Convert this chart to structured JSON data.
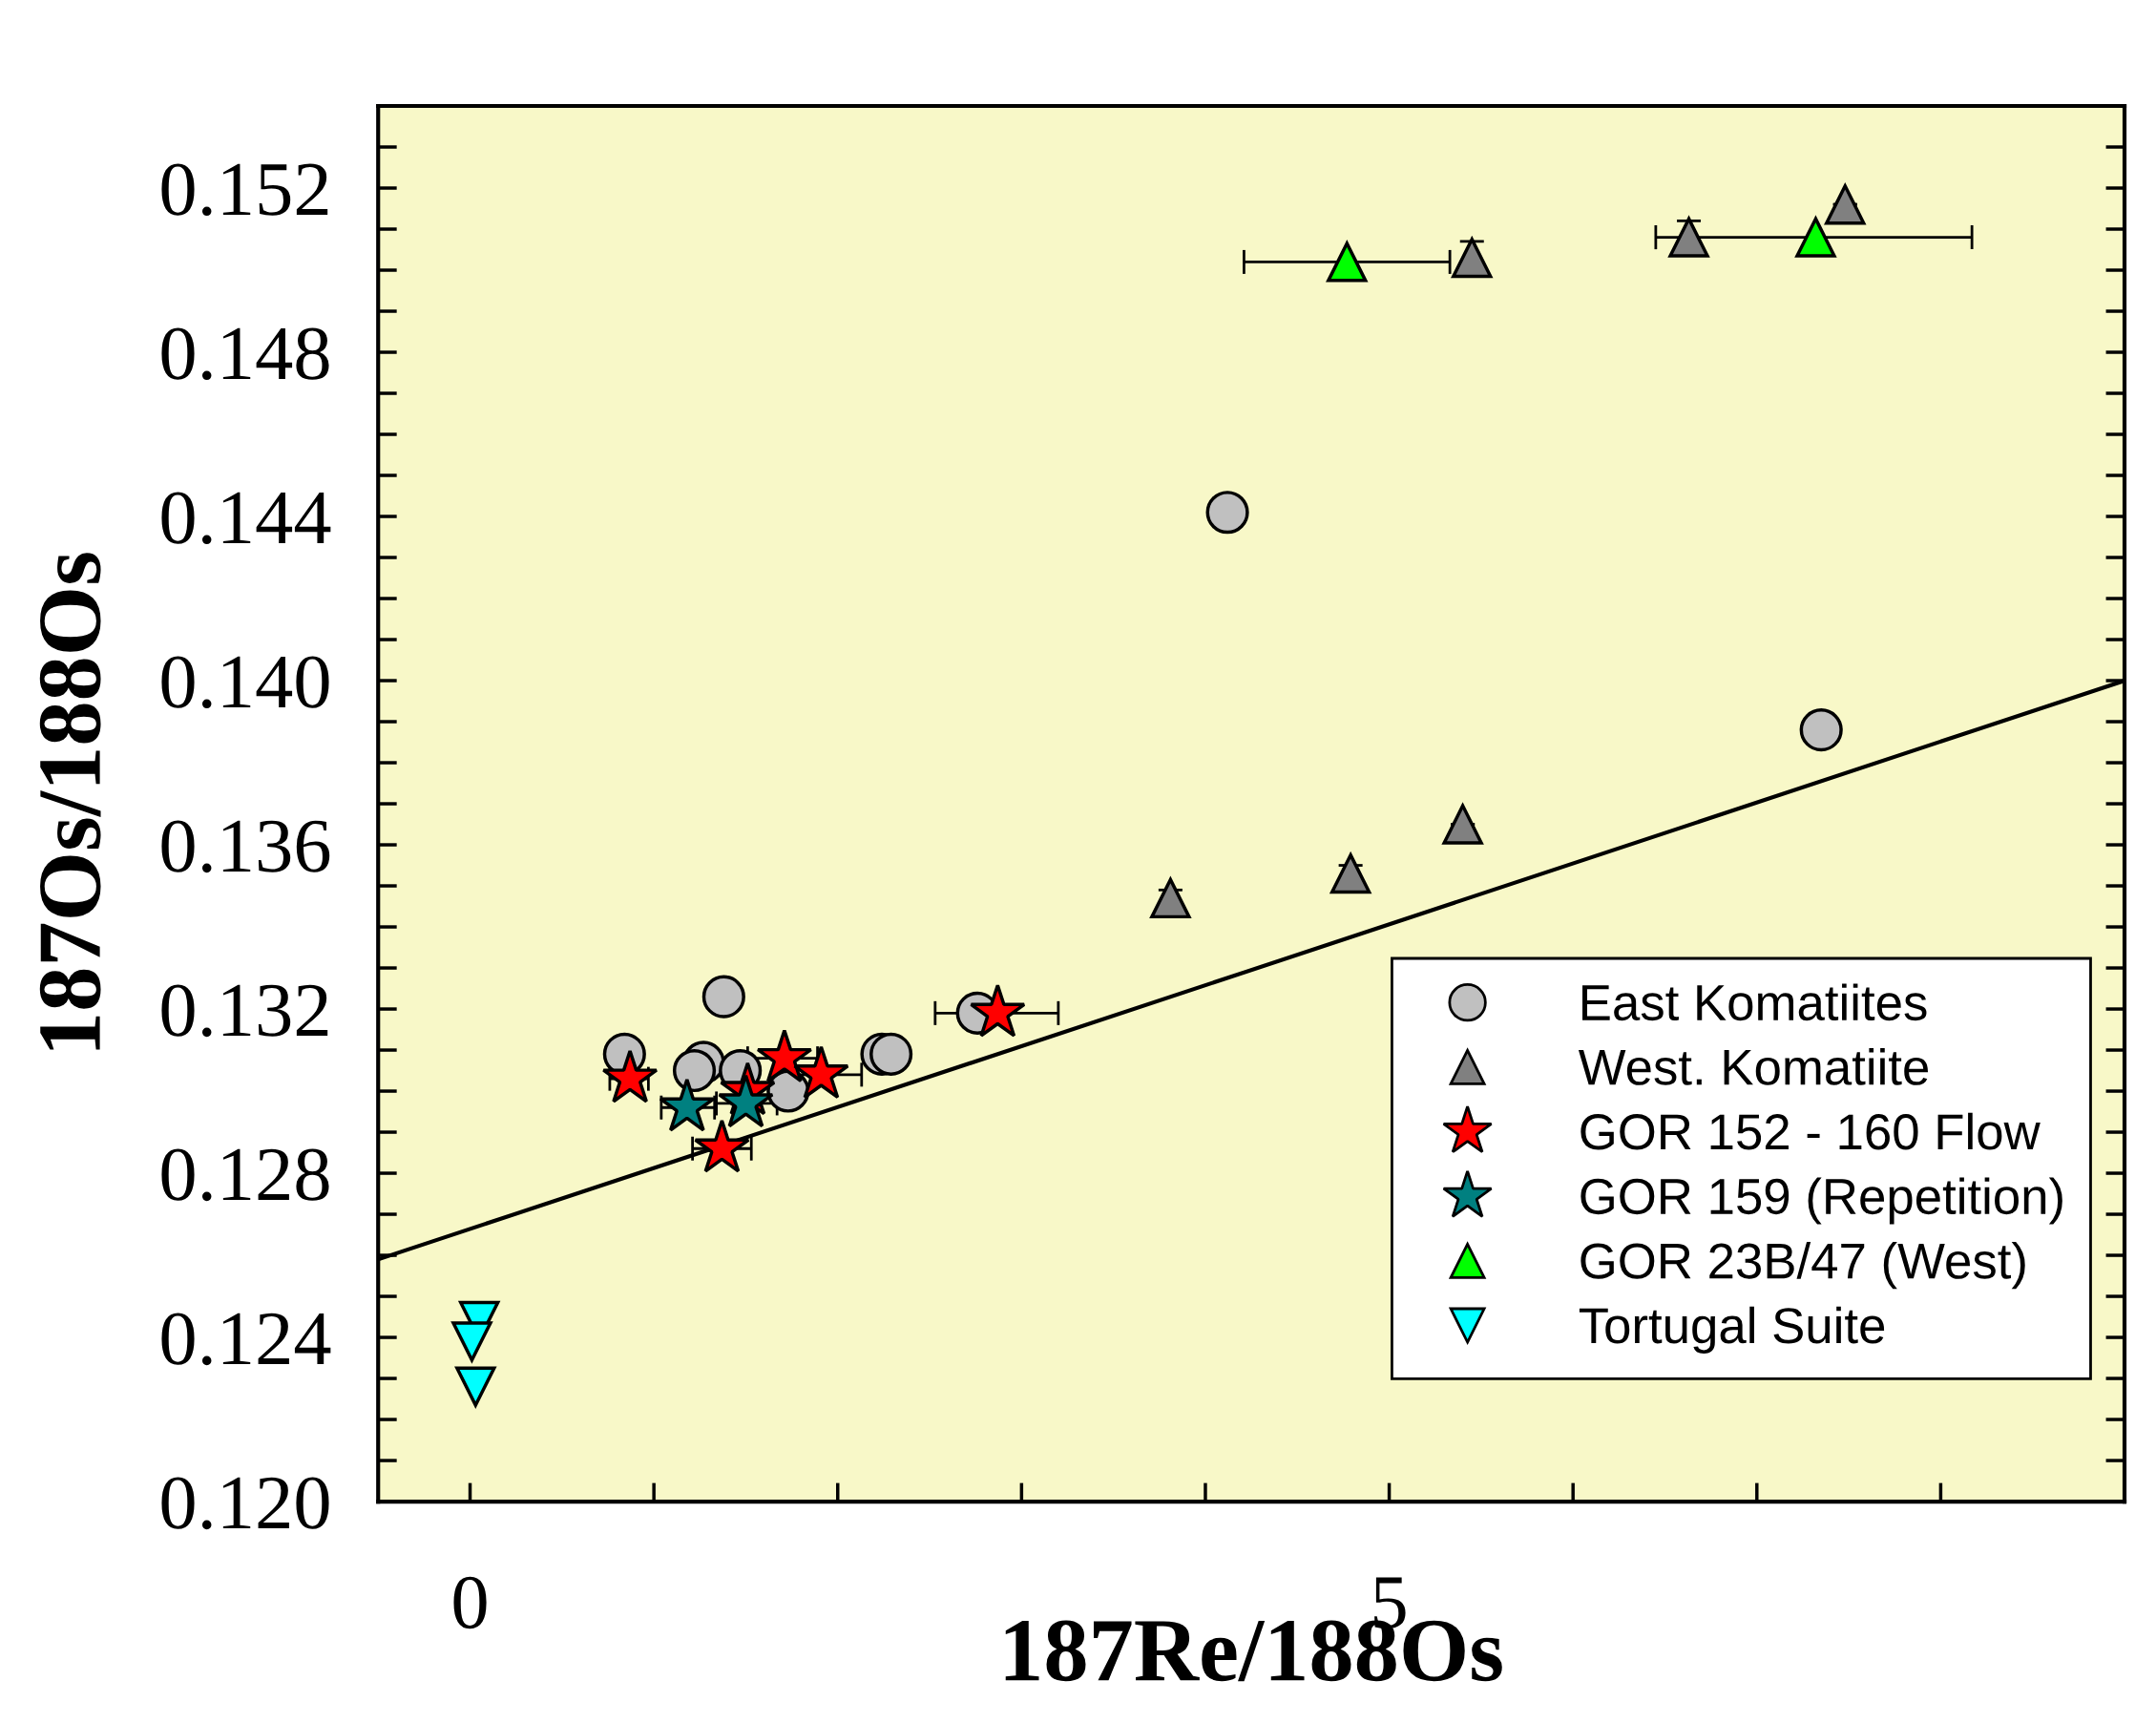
{
  "chart_data": {
    "type": "scatter",
    "xlabel": "187Re/188Os",
    "ylabel": "187Os/188Os",
    "xlim": [
      -0.5,
      9.0
    ],
    "ylim": [
      0.12,
      0.154
    ],
    "xticks": [
      0,
      5
    ],
    "yticks": [
      {
        "value": 0.12,
        "label": "0.120"
      },
      0.124,
      0.128,
      0.132,
      0.136,
      {
        "value": 0.14,
        "label": "0.140"
      },
      0.144,
      0.148,
      0.152
    ],
    "grid": false,
    "legend": "lower right",
    "series": [
      {
        "type": "line",
        "color": "#000000",
        "line_style": "solid",
        "marker": "none",
        "x": [
          -0.5,
          9.0
        ],
        "values": [
          0.1259,
          0.14
        ]
      },
      {
        "name": "East Komatiites",
        "marker": "circle",
        "color": "#c0c0c0",
        "x": [
          4.12,
          7.35,
          1.38,
          0.84,
          1.27,
          1.22,
          1.47,
          1.73,
          2.24,
          2.29,
          2.76
        ],
        "values": [
          0.1441,
          0.1388,
          0.1323,
          0.1309,
          0.1307,
          0.1305,
          0.1305,
          0.13,
          0.1309,
          0.1309,
          0.1319
        ]
      },
      {
        "name": "West. Komatiite",
        "marker": "triangle",
        "color": "#808080",
        "x": [
          7.48,
          6.63,
          5.45,
          3.81,
          4.79,
          5.4
        ],
        "values": [
          0.1516,
          0.1508,
          0.1503,
          0.1347,
          0.1353,
          0.1365
        ],
        "errors": [
          null,
          0.0004,
          0.0004,
          0.0002,
          0.0002,
          null
        ]
      },
      {
        "name": "GOR 152 - 160 Flow",
        "marker": "star",
        "color": "#ff0000",
        "x": [
          0.87,
          1.37,
          1.71,
          1.91,
          2.87,
          1.51
        ],
        "values": [
          0.1303,
          0.1286,
          0.1308,
          0.1304,
          0.1319,
          0.13
        ],
        "xerrors": [
          [
            0.76,
            0.97
          ],
          [
            1.21,
            1.53
          ],
          [
            1.51,
            1.89
          ],
          [
            1.68,
            2.13
          ],
          [
            2.53,
            3.2
          ],
          null
        ]
      },
      {
        "name": "GOR 159 (Repetition)",
        "marker": "star",
        "color": "#008080",
        "x": [
          1.18,
          1.5
        ],
        "values": [
          0.1296,
          0.1297
        ],
        "xerrors": [
          [
            1.04,
            1.33
          ],
          [
            1.34,
            1.67
          ]
        ]
      },
      {
        "name": "GOR 23B/47 (West)",
        "marker": "triangle",
        "color": "#00ff00",
        "x": [
          4.77,
          7.32
        ],
        "values": [
          0.1502,
          0.1508
        ],
        "xerrors": [
          [
            4.21,
            5.33
          ],
          [
            6.45,
            8.17
          ]
        ]
      },
      {
        "name": "Tortugal Suite",
        "marker": "triangle_down",
        "color": "#00ffff",
        "x": [
          0.05,
          0.01,
          0.03
        ],
        "values": [
          0.1244,
          0.1239,
          0.1228
        ]
      }
    ]
  }
}
